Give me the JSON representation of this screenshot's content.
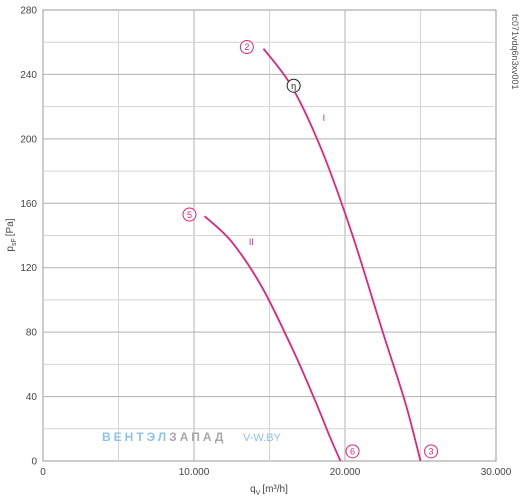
{
  "chart_data": {
    "type": "line",
    "xlabel": "q",
    "xlabel_sub": "V",
    "xlabel_unit": "[m³/h]",
    "ylabel": "p",
    "ylabel_sub": "sF",
    "ylabel_unit": "[Pa]",
    "xlim": [
      0,
      30000
    ],
    "ylim": [
      0,
      280
    ],
    "x_ticks": [
      0,
      10000,
      20000,
      30000
    ],
    "x_tick_labels": [
      "0",
      "10.000",
      "20.000",
      "30.000"
    ],
    "y_ticks": [
      0,
      40,
      80,
      120,
      160,
      200,
      240,
      280
    ],
    "y_tick_labels": [
      "0",
      "40",
      "80",
      "120",
      "160",
      "200",
      "240",
      "280"
    ],
    "grid": true,
    "code_label": "fc071vdq6n3xv001",
    "curve_color": "#e0257c",
    "series": [
      {
        "name": "I",
        "x": [
          14600,
          16500,
          18500,
          20500,
          22500,
          24000,
          25000
        ],
        "y": [
          256,
          232,
          192,
          140,
          80,
          36,
          0
        ]
      },
      {
        "name": "II",
        "x": [
          10700,
          12500,
          14500,
          16500,
          18000,
          19000,
          19700
        ],
        "y": [
          152,
          136,
          108,
          70,
          38,
          15,
          0
        ]
      }
    ],
    "markers": [
      {
        "label": "2",
        "x": 13500,
        "y": 257,
        "style": "pink"
      },
      {
        "label": "η",
        "x": 16600,
        "y": 233,
        "style": "black"
      },
      {
        "label": "3",
        "x": 25700,
        "y": 6,
        "style": "pink"
      },
      {
        "label": "5",
        "x": 9700,
        "y": 153,
        "style": "pink"
      },
      {
        "label": "6",
        "x": 20500,
        "y": 6,
        "style": "pink"
      }
    ],
    "curve_labels": [
      {
        "label": "I",
        "x": 18600,
        "y": 211
      },
      {
        "label": "II",
        "x": 13800,
        "y": 134
      }
    ]
  },
  "watermark": {
    "part1": "ВЕНТЭЛ",
    "part2": "ЗАПАД",
    "part3": "V-W.BY"
  }
}
